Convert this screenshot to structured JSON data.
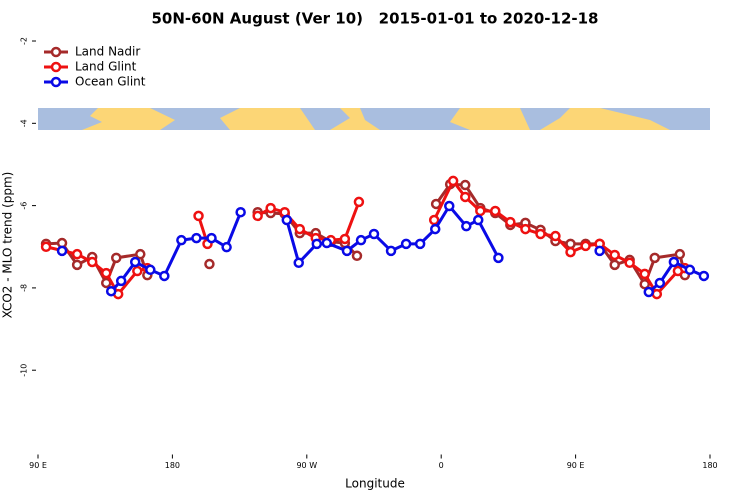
{
  "chart_data": {
    "type": "line",
    "title": "50N-60N August (Ver 10)   2015-01-01 to 2020-12-18",
    "x_label": "Longitude",
    "y_label": "XCO2 - MLO trend (ppm)",
    "xlim": [
      90,
      540
    ],
    "ylim": [
      -12,
      -1.9
    ],
    "xticks": [
      {
        "value": 90,
        "label": "90 E"
      },
      {
        "value": 180,
        "label": "180"
      },
      {
        "value": 270,
        "label": "90 W"
      },
      {
        "value": 360,
        "label": "0"
      },
      {
        "value": 450,
        "label": "90 E"
      },
      {
        "value": 540,
        "label": "180"
      }
    ],
    "yticks": [
      -2,
      -4,
      -6,
      -8,
      -10
    ],
    "legend": "top-left",
    "series": [
      {
        "name": "Land Nadir",
        "color": "#a52a2a",
        "x": [
          95.4,
          106.1,
          116.2,
          126.3,
          135.7,
          142.4,
          158.5,
          163.2,
          null,
          204.8,
          null,
          237.1,
          245.8,
          255.2,
          265.3,
          276.0,
          286.1,
          295.5,
          303.6,
          null,
          356.6,
          366.0,
          376.1,
          386.2,
          396.2,
          406.3,
          416.4,
          426.5,
          436.5,
          446.6,
          456.7,
          466.1,
          476.2,
          486.2,
          496.3,
          503.0,
          519.8,
          523.2
        ],
        "values": [
          -6.93,
          -6.91,
          -7.44,
          -7.25,
          -7.88,
          -7.27,
          -7.18,
          -7.69,
          null,
          -7.42,
          null,
          -6.16,
          -6.18,
          -6.2,
          -6.67,
          -6.67,
          -6.88,
          -6.91,
          -7.22,
          null,
          -5.96,
          -5.48,
          -5.5,
          -6.06,
          -6.18,
          -6.47,
          -6.42,
          -6.59,
          -6.86,
          -6.93,
          -6.93,
          -6.93,
          -7.44,
          -7.32,
          -7.91,
          -7.27,
          -7.18,
          -7.69
        ]
      },
      {
        "name": "Land Glint",
        "color": "#ee1111",
        "x": [
          95.4,
          116.2,
          126.3,
          135.7,
          143.7,
          156.5,
          163.2,
          null,
          197.5,
          203.5,
          null,
          237.1,
          245.8,
          255.2,
          265.3,
          276.0,
          286.1,
          295.5,
          304.9,
          null,
          355.3,
          368.0,
          376.1,
          386.2,
          396.2,
          406.3,
          416.4,
          426.5,
          436.5,
          446.6,
          456.7,
          466.1,
          476.2,
          486.2,
          496.3,
          504.4,
          518.5,
          523.2
        ],
        "values": [
          -7.0,
          -7.18,
          -7.37,
          -7.64,
          -8.15,
          -7.59,
          -7.52,
          null,
          -6.25,
          -6.93,
          null,
          -6.25,
          -6.06,
          -6.16,
          -6.57,
          -6.79,
          -6.84,
          -6.81,
          -5.91,
          null,
          -6.35,
          -5.4,
          -5.79,
          -6.13,
          -6.13,
          -6.4,
          -6.57,
          -6.69,
          -6.74,
          -7.13,
          -6.98,
          -6.93,
          -7.2,
          -7.39,
          -7.66,
          -8.15,
          -7.59,
          -7.52
        ]
      },
      {
        "name": "Ocean Glint",
        "color": "#0a0ae6",
        "x": [
          106.1,
          null,
          139.0,
          145.7,
          155.1,
          165.2,
          174.6,
          186.0,
          196.1,
          206.2,
          216.3,
          225.7,
          null,
          256.6,
          264.6,
          276.7,
          283.4,
          296.9,
          306.3,
          315.0,
          326.4,
          336.5,
          345.9,
          356.0,
          365.4,
          376.8,
          384.8,
          398.3,
          null,
          466.1,
          null,
          499.0,
          506.4,
          515.8,
          526.5,
          535.9
        ],
        "values": [
          -7.1,
          null,
          -8.08,
          -7.83,
          -7.37,
          -7.56,
          -7.71,
          -6.84,
          -6.79,
          -6.79,
          -7.01,
          -6.16,
          null,
          -6.35,
          -7.39,
          -6.93,
          -6.91,
          -7.1,
          -6.84,
          -6.69,
          -7.1,
          -6.93,
          -6.93,
          -6.57,
          -6.01,
          -6.5,
          -6.35,
          -7.27,
          null,
          -7.1,
          null,
          -8.1,
          -7.88,
          -7.37,
          -7.56,
          -7.71
        ]
      }
    ]
  }
}
